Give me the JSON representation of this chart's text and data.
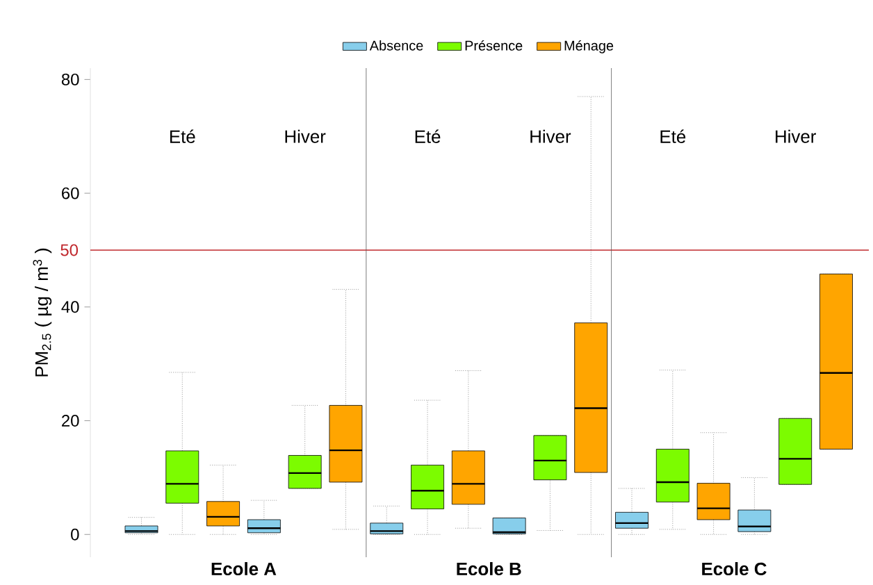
{
  "chart_data": {
    "type": "box",
    "ylabel": "PM$_{2.5}$ ( µg / m$^{3}$ )",
    "categories": [
      "Eté",
      "Hiver",
      "Eté",
      "Hiver",
      "Eté",
      "Hiver"
    ],
    "annotations": [
      "Ecole A",
      "Ecole B",
      "Ecole C"
    ],
    "ylim": [
      -4,
      82
    ],
    "yticks": [
      0,
      20,
      40,
      60,
      80
    ],
    "grid": false,
    "legend": "top",
    "ref_lines": [
      {
        "axis": "y",
        "value": 50,
        "label": "50",
        "color": "#c0282d"
      }
    ],
    "series": [
      {
        "name": "Absence",
        "color": "#87ceeb",
        "boxes": [
          {
            "low": 0,
            "q1": 0.3,
            "median": 0.6,
            "q3": 1.5,
            "high": 3
          },
          {
            "low": 0,
            "q1": 0.3,
            "median": 1.1,
            "q3": 2.6,
            "high": 6
          },
          {
            "low": 0,
            "q1": 0.1,
            "median": 0.6,
            "q3": 2,
            "high": 5
          },
          {
            "low": 0,
            "q1": 0.1,
            "median": 0.4,
            "q3": 2.9,
            "high": 2.9
          },
          {
            "low": 0,
            "q1": 1.1,
            "median": 2,
            "q3": 3.9,
            "high": 8.1
          },
          {
            "low": 0,
            "q1": 0.5,
            "median": 1.4,
            "q3": 4.3,
            "high": 10
          }
        ]
      },
      {
        "name": "Présence",
        "color": "#7cfc00",
        "boxes": [
          {
            "low": 0,
            "q1": 5.5,
            "median": 8.9,
            "q3": 14.7,
            "high": 28.5
          },
          {
            "low": 8.1,
            "q1": 8.1,
            "median": 10.8,
            "q3": 13.9,
            "high": 22.7
          },
          {
            "low": 0,
            "q1": 4.5,
            "median": 7.7,
            "q3": 12.2,
            "high": 23.6
          },
          {
            "low": 0.7,
            "q1": 9.6,
            "median": 13,
            "q3": 17.4,
            "high": 17.4
          },
          {
            "low": 0.9,
            "q1": 5.7,
            "median": 9.2,
            "q3": 15,
            "high": 28.9
          },
          {
            "low": 8.8,
            "q1": 8.8,
            "median": 13.3,
            "q3": 20.4,
            "high": 20.4
          }
        ]
      },
      {
        "name": "Ménage",
        "color": "#ffa500",
        "boxes": [
          {
            "low": 0,
            "q1": 1.5,
            "median": 3.1,
            "q3": 5.8,
            "high": 12.2
          },
          {
            "low": 0.9,
            "q1": 9.2,
            "median": 14.8,
            "q3": 22.7,
            "high": 43.1
          },
          {
            "low": 1.1,
            "q1": 5.3,
            "median": 8.9,
            "q3": 14.7,
            "high": 28.8
          },
          {
            "low": 0,
            "q1": 10.9,
            "median": 22.2,
            "q3": 37.2,
            "high": 77
          },
          {
            "low": 0,
            "q1": 2.6,
            "median": 4.6,
            "q3": 9,
            "high": 17.9
          },
          {
            "low": 15,
            "q1": 15,
            "median": 28.4,
            "q3": 45.8,
            "high": 45.8
          }
        ]
      }
    ]
  }
}
